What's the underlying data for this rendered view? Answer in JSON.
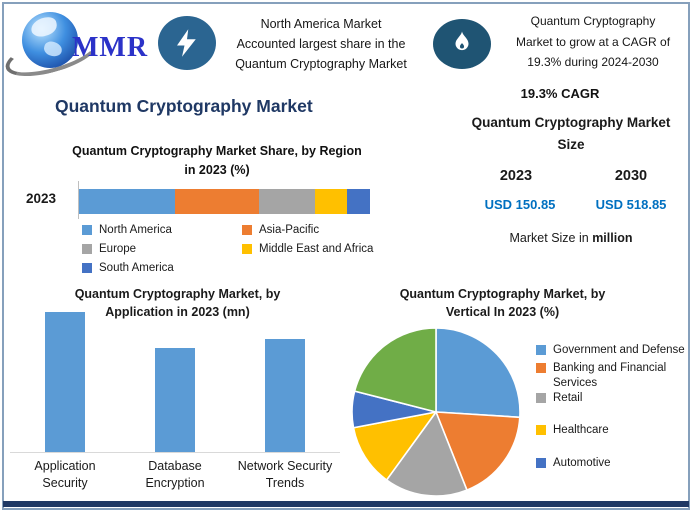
{
  "colors": {
    "navy": "#1F3864",
    "value_blue": "#0070C0",
    "badge_bolt_bg": "#2B6591",
    "badge_flame_bg": "#1F5473",
    "logo_text_blue": "#2B32C8",
    "frame_border": "#86A0BC"
  },
  "header": {
    "logo": {
      "text": "MMR",
      "icon": "globe-icon"
    },
    "highlight_left": {
      "icon": "lightning-icon",
      "lines": [
        "North America Market",
        "Accounted largest share in the",
        "Quantum Cryptography Market"
      ]
    },
    "highlight_right": {
      "icon": "flame-icon",
      "lines": [
        "Quantum Cryptography",
        "Market to grow at a CAGR of",
        "19.3% during 2024-2030"
      ]
    }
  },
  "page_title": "Quantum Cryptography Market",
  "market_size_panel": {
    "cagr": "19.3% CAGR",
    "heading": "Quantum Cryptography Market Size",
    "columns": [
      {
        "year": "2023",
        "value": "USD 150.85"
      },
      {
        "year": "2030",
        "value": "USD 518.85"
      }
    ],
    "note_prefix": "Market Size in ",
    "note_bold": "million"
  },
  "chart_data": [
    {
      "id": "region_share",
      "type": "bar",
      "subtype": "stacked-horizontal",
      "title": "Quantum Cryptography Market Share, by Region in 2023 (%)",
      "categories": [
        "2023"
      ],
      "series": [
        {
          "name": "North America",
          "values": [
            33
          ],
          "color": "#5B9BD5"
        },
        {
          "name": "Asia-Pacific",
          "values": [
            29
          ],
          "color": "#ED7D31"
        },
        {
          "name": "Europe",
          "values": [
            19
          ],
          "color": "#A5A5A5"
        },
        {
          "name": "Middle East and Africa",
          "values": [
            11
          ],
          "color": "#FFC000"
        },
        {
          "name": "South America",
          "values": [
            8
          ],
          "color": "#4472C4"
        }
      ],
      "xlim": [
        0,
        100
      ],
      "grid": false,
      "legend_position": "bottom",
      "note": "segment widths estimated; no data labels shown in image"
    },
    {
      "id": "application",
      "type": "bar",
      "title": "Quantum Cryptography Market, by Application in 2023 (mn)",
      "categories": [
        "Application Security",
        "Database Encryption",
        "Network Security Trends"
      ],
      "values": [
        100,
        74,
        81
      ],
      "color": "#5B9BD5",
      "ylabel": "",
      "grid": false,
      "note": "no y-axis ticks shown; values are relative bar heights (tallest = 100)"
    },
    {
      "id": "vertical",
      "type": "pie",
      "title": "Quantum Cryptography Market, by Vertical In 2023 (%)",
      "start_angle_deg": 0,
      "direction": "clockwise",
      "slices": [
        {
          "label": "Government and Defense",
          "value": 26,
          "color": "#5B9BD5"
        },
        {
          "label": "Banking and Financial Services",
          "value": 18,
          "color": "#ED7D31"
        },
        {
          "label": "Retail",
          "value": 16,
          "color": "#A5A5A5"
        },
        {
          "label": "Healthcare",
          "value": 12,
          "color": "#FFC000"
        },
        {
          "label": "Automotive",
          "value": 7,
          "color": "#4472C4"
        },
        {
          "label": "",
          "value": 21,
          "color": "#70AD47"
        }
      ],
      "legend_position": "right",
      "note": "green slice has no legend entry in image; values estimated from slice angles"
    }
  ]
}
